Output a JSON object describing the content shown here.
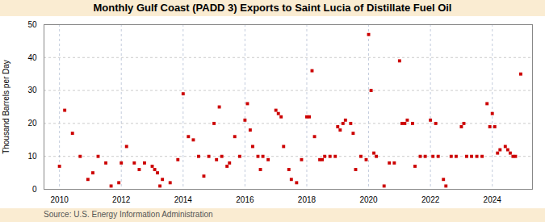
{
  "chart_data": {
    "type": "scatter",
    "title": "Monthly Gulf Coast (PADD 3) Exports to Saint Lucia of Distillate Fuel Oil",
    "ylabel": "Thousand Barrels per Day",
    "source": "Source: U.S. Energy Information Administration",
    "color": "#cc0000",
    "marker": "square",
    "grid": true,
    "xlim": [
      2009.5,
      2025.3
    ],
    "xticks": [
      2010,
      2012,
      2014,
      2016,
      2018,
      2020,
      2022,
      2024
    ],
    "ylim": [
      0,
      50
    ],
    "yticks": [
      0,
      10,
      20,
      30,
      40,
      50
    ],
    "x": [
      2010.0,
      2010.17,
      2010.42,
      2010.67,
      2010.92,
      2011.08,
      2011.25,
      2011.5,
      2011.67,
      2011.92,
      2012.0,
      2012.17,
      2012.42,
      2012.58,
      2012.75,
      2013.0,
      2013.08,
      2013.17,
      2013.25,
      2013.33,
      2013.58,
      2013.83,
      2014.0,
      2014.17,
      2014.33,
      2014.5,
      2014.67,
      2014.83,
      2015.0,
      2015.08,
      2015.17,
      2015.25,
      2015.42,
      2015.5,
      2015.67,
      2015.83,
      2016.0,
      2016.08,
      2016.17,
      2016.25,
      2016.42,
      2016.5,
      2016.58,
      2016.75,
      2017.0,
      2017.08,
      2017.17,
      2017.25,
      2017.42,
      2017.5,
      2017.67,
      2017.83,
      2018.0,
      2018.08,
      2018.17,
      2018.25,
      2018.42,
      2018.5,
      2018.58,
      2018.75,
      2018.92,
      2019.0,
      2019.08,
      2019.17,
      2019.25,
      2019.42,
      2019.5,
      2019.58,
      2019.75,
      2019.92,
      2020.0,
      2020.08,
      2020.17,
      2020.25,
      2020.5,
      2020.67,
      2020.83,
      2021.0,
      2021.08,
      2021.17,
      2021.25,
      2021.42,
      2021.5,
      2021.67,
      2021.83,
      2022.0,
      2022.08,
      2022.17,
      2022.25,
      2022.42,
      2022.5,
      2022.67,
      2022.83,
      2023.0,
      2023.08,
      2023.17,
      2023.33,
      2023.5,
      2023.67,
      2023.83,
      2023.92,
      2024.0,
      2024.08,
      2024.17,
      2024.25,
      2024.42,
      2024.5,
      2024.58,
      2024.67,
      2024.75,
      2024.92
    ],
    "values": [
      7,
      24,
      17,
      10,
      3,
      5,
      10,
      8,
      1,
      2,
      8,
      13,
      8,
      6,
      8,
      7,
      6,
      5,
      1,
      3,
      2,
      9,
      29,
      16,
      15,
      10,
      4,
      10,
      20,
      9,
      25,
      10,
      7,
      8,
      16,
      10,
      21,
      26,
      18,
      13,
      10,
      6,
      10,
      9,
      24,
      23,
      22,
      13,
      6,
      3,
      2,
      9,
      22,
      22,
      36,
      16,
      9,
      9,
      10,
      10,
      10,
      19,
      18,
      20,
      21,
      20,
      17,
      6,
      10,
      9,
      47,
      30,
      11,
      10,
      1,
      8,
      8,
      39,
      20,
      20,
      21,
      20,
      7,
      10,
      10,
      21,
      10,
      20,
      10,
      3,
      1,
      10,
      10,
      19,
      20,
      10,
      10,
      10,
      10,
      26,
      19,
      23,
      19,
      11,
      12,
      13,
      12,
      11,
      10,
      10,
      35
    ]
  }
}
